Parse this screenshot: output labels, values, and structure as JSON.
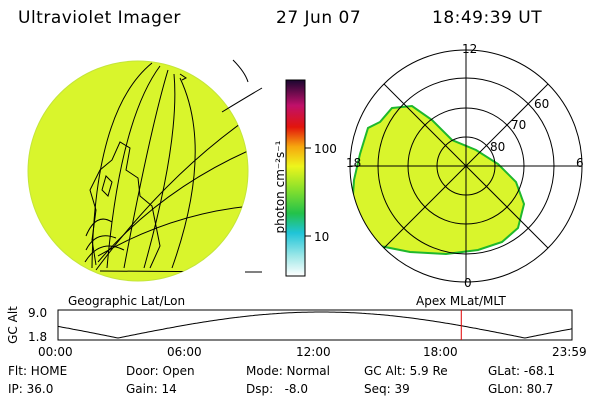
{
  "header": {
    "title": "Ultraviolet Imager",
    "date": "27 Jun 07",
    "time": "18:49:39 UT"
  },
  "colorbar": {
    "unit_label": "photon cm⁻²s⁻¹",
    "ticks": [
      "100",
      "10"
    ]
  },
  "geo_map": {
    "caption": "Geographic Lat/Lon"
  },
  "polar_map": {
    "caption": "Apex MLat/MLT",
    "mlt_labels": {
      "top": "12",
      "left": "18",
      "right": "6",
      "bottom": "0"
    },
    "lat_labels": [
      "60",
      "70",
      "80"
    ]
  },
  "altitude_plot": {
    "ylabel": "GC Alt",
    "ymax": "9.0",
    "ymin": "1.8",
    "xticks": [
      "00:00",
      "06:00",
      "12:00",
      "18:00",
      "23:59"
    ],
    "current_time_hours": 18.83,
    "current_marker_color": "#e00000"
  },
  "info": {
    "flt": "Flt: HOME",
    "door": "Door: Open",
    "mode": "Mode: Normal",
    "gcalt": "GC Alt: 5.9 Re",
    "glat": "GLat: -68.1",
    "ip": "IP: 36.0",
    "gain": "Gain: 14",
    "dsp": "Dsp:   -8.0",
    "seq": "Seq: 39",
    "glon": "GLon: 80.7"
  },
  "colors": {
    "emission": "#d9f52c",
    "emission_edge": "#1fb82c"
  }
}
